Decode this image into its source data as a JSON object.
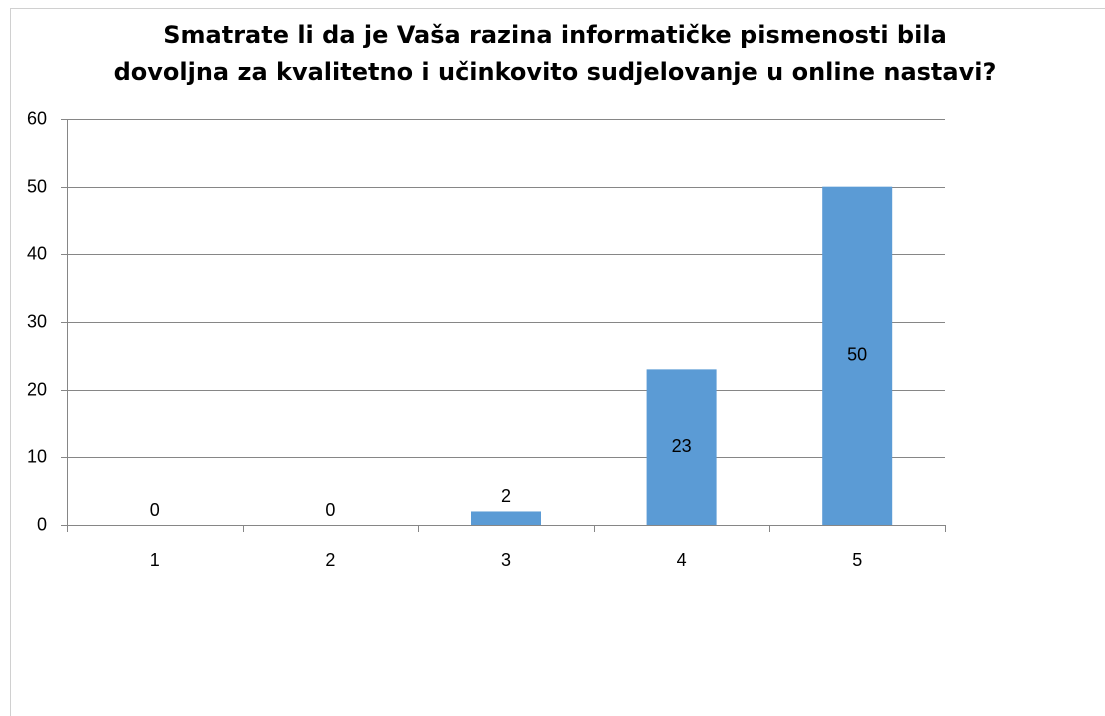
{
  "chart_data": {
    "type": "bar",
    "title": [
      "Smatrate li da je Vaša razina informatičke pismenosti bila",
      "dovoljna za kvalitetno i učinkovito sudjelovanje u online nastavi?"
    ],
    "categories": [
      "1",
      "2",
      "3",
      "4",
      "5"
    ],
    "values": [
      0,
      0,
      2,
      23,
      50
    ],
    "color": "#5b9bd5",
    "ylim": [
      0,
      60
    ],
    "yticks": [
      0,
      10,
      20,
      30,
      40,
      50,
      60
    ],
    "grid": true
  }
}
